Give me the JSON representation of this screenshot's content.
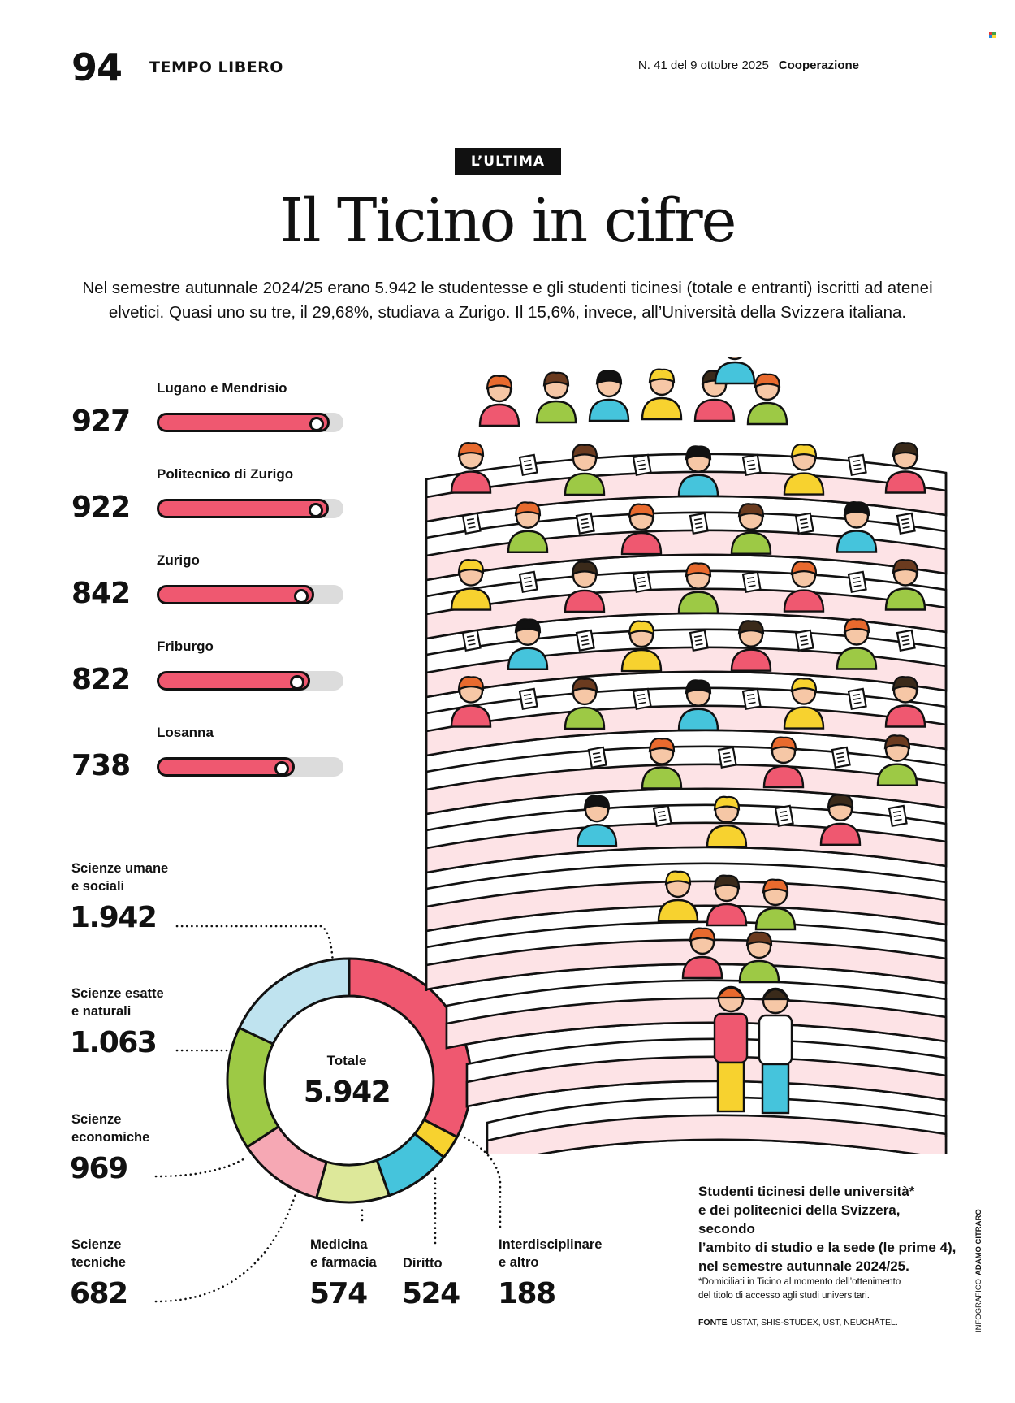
{
  "header": {
    "page_number": "94",
    "section": "TEMPO LIBERO",
    "issue": "N. 41 del 9 ottobre 2025",
    "publication": "Cooperazione"
  },
  "kicker": "L’ULTIMA",
  "title": "Il Ticino in cifre",
  "intro": {
    "line1": "Nel semestre autunnale 2024/25 erano 5.942 le studentesse e gli studenti ticinesi (totale e entranti) iscritti ad atenei",
    "line2": "elvetici. Quasi uno su tre, il 29,68%, studiava a Zurigo. Il 15,6%, invece, all’Università della Svizzera italiana."
  },
  "chart_data": [
    {
      "type": "bar",
      "categories": [
        "Lugano e Mendrisio",
        "Politecnico di Zurigo",
        "Zurigo",
        "Friburgo",
        "Losanna"
      ],
      "values": [
        927,
        922,
        842,
        822,
        738
      ],
      "value_labels": [
        "927",
        "922",
        "842",
        "822",
        "738"
      ],
      "ylim": [
        0,
        1000
      ],
      "orientation": "horizontal",
      "colors": {
        "fill": "#ef5870",
        "track": "#dcdcdc"
      }
    },
    {
      "type": "pie",
      "style": "donut",
      "center_label": "Totale",
      "center_value": "5.942",
      "total": 5942,
      "slices": [
        {
          "label_lines": [
            "Scienze umane",
            "e sociali"
          ],
          "value": 1942,
          "display": "1.942",
          "color": "#ef5870"
        },
        {
          "label_lines": [
            "Interdisciplinare",
            "e altro"
          ],
          "value": 188,
          "display": "188",
          "color": "#f7d22f"
        },
        {
          "label_lines": [
            "Diritto"
          ],
          "value": 524,
          "display": "524",
          "color": "#45c4dc"
        },
        {
          "label_lines": [
            "Medicina",
            "e farmacia"
          ],
          "value": 574,
          "display": "574",
          "color": "#dde89a"
        },
        {
          "label_lines": [
            "Scienze",
            "tecniche"
          ],
          "value": 682,
          "display": "682",
          "color": "#f6a8b4"
        },
        {
          "label_lines": [
            "Scienze",
            "economiche"
          ],
          "value": 969,
          "display": "969",
          "color": "#9dc945"
        },
        {
          "label_lines": [
            "Scienze esatte",
            "e naturali"
          ],
          "value": 1063,
          "display": "1.063",
          "color": "#bfe3ef"
        }
      ]
    }
  ],
  "caption": {
    "line1": "Studenti ticinesi delle università*",
    "line2": "e dei politecnici della Svizzera, secondo",
    "line3": "l’ambito di studio e la sede (le prime 4),",
    "line4": "nel semestre autunnale 2024/25."
  },
  "footnote": {
    "line1": "*Domiciliati in Ticino al momento dell’ottenimento",
    "line2": "del titolo di accesso agli studi universitari."
  },
  "source": {
    "label": "FONTE",
    "text": "USTAT, SHIS-STUDEX, UST, NEUCHÂTEL."
  },
  "credit": {
    "label": "INFOGRAFICO",
    "name": "ADAMO CITRARO"
  },
  "colors": {
    "accent": "#ef5870",
    "ink": "#111111",
    "row_pink": "#fde3e6"
  }
}
